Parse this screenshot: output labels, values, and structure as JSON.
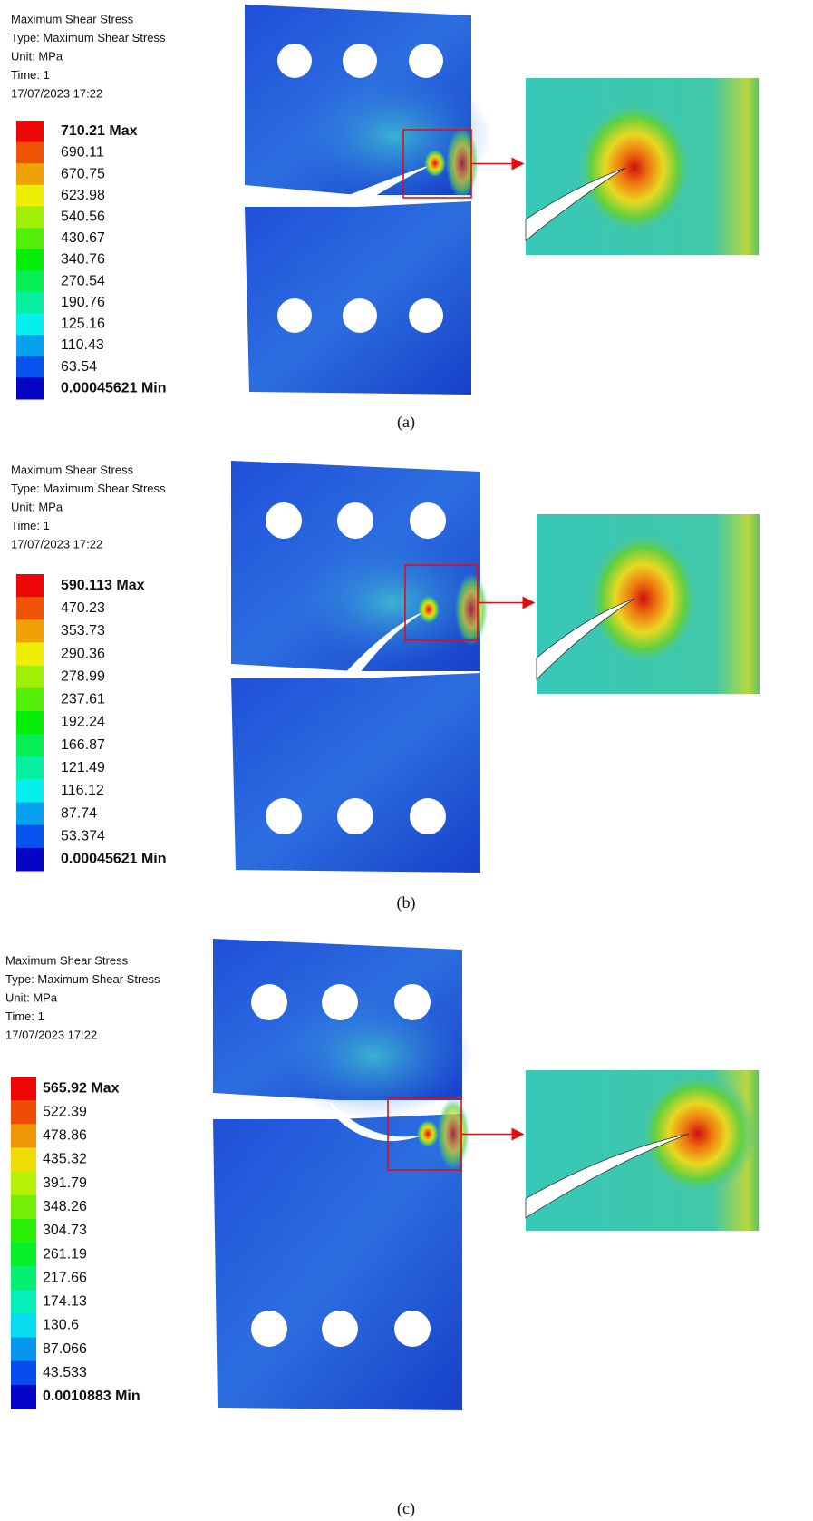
{
  "panels": [
    {
      "header": [
        "Maximum Shear Stress",
        "Type: Maximum Shear Stress",
        "Unit: MPa",
        "Time: 1",
        "17/07/2023 17:22"
      ],
      "legend": [
        "710.21 Max",
        "690.11",
        "670.75",
        "623.98",
        "540.56",
        "430.67",
        "340.76",
        "270.54",
        "190.76",
        "125.16",
        "110.43",
        "63.54",
        "0.00045621 Min"
      ],
      "caption": "(a)"
    },
    {
      "header": [
        "Maximum Shear Stress",
        "Type: Maximum Shear Stress",
        "Unit: MPa",
        "Time: 1",
        "17/07/2023 17:22"
      ],
      "legend": [
        "590.113 Max",
        "470.23",
        "353.73",
        "290.36",
        "278.99",
        "237.61",
        "192.24",
        "166.87",
        "121.49",
        "116.12",
        "87.74",
        "53.374",
        "0.00045621 Min"
      ],
      "caption": "(b)"
    },
    {
      "header": [
        "Maximum Shear Stress",
        "Type: Maximum Shear Stress",
        "Unit: MPa",
        "Time: 1",
        "17/07/2023 17:22"
      ],
      "legend": [
        "565.92 Max",
        "522.39",
        "478.86",
        "435.32",
        "391.79",
        "348.26",
        "304.73",
        "261.19",
        "217.66",
        "174.13",
        "130.6",
        "87.066",
        "43.533",
        "0.0010883 Min"
      ],
      "caption": "(c)"
    }
  ]
}
